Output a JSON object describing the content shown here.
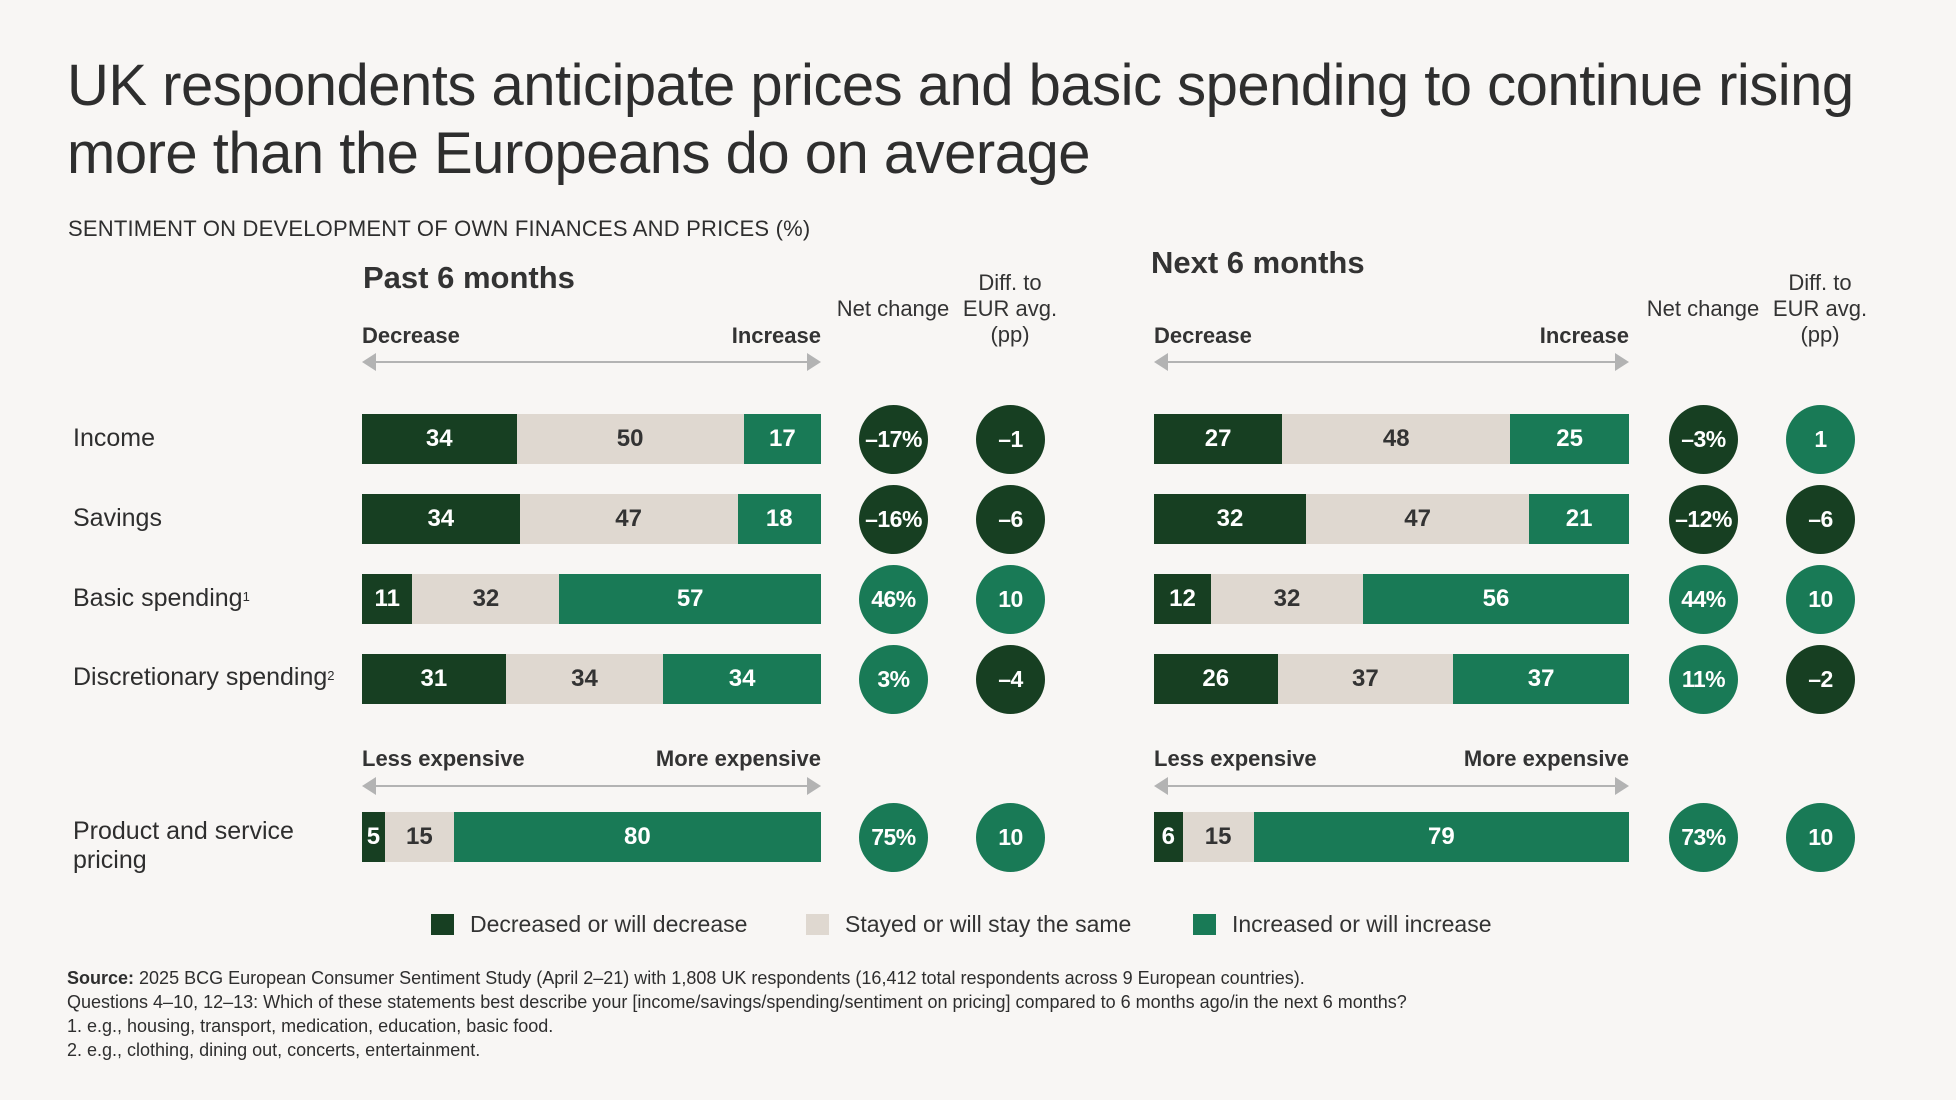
{
  "title": "UK respondents anticipate prices and basic spending to continue rising more than the Europeans do on average",
  "subtitle": "SENTIMENT ON DEVELOPMENT OF OWN FINANCES AND PRICES (%)",
  "colors": {
    "decrease": "#173f22",
    "same": "#dfd8d0",
    "increase": "#197a56",
    "background": "#f8f6f4",
    "arrow": "#b3b3b3"
  },
  "headers": {
    "net_change": "Net change",
    "diff_line1": "Diff. to",
    "diff_line2": "EUR avg.",
    "diff_line3": "(pp)",
    "decrease": "Decrease",
    "increase": "Increase",
    "less_expensive": "Less expensive",
    "more_expensive": "More expensive"
  },
  "chart_data": {
    "type": "bar",
    "subtype": "stacked-horizontal-100",
    "title": "SENTIMENT ON DEVELOPMENT OF OWN FINANCES AND PRICES (%)",
    "categories": [
      "Income",
      "Savings",
      "Basic spending",
      "Discretionary spending",
      "Product and service pricing"
    ],
    "category_footnotes": [
      "",
      "",
      "1",
      "2",
      ""
    ],
    "legend": [
      "Decreased or will decrease",
      "Stayed or will stay the same",
      "Increased or will increase"
    ],
    "legend_position": "bottom",
    "panels": [
      {
        "name": "Past 6 months",
        "series": [
          {
            "name": "Decreased or will decrease",
            "values": [
              34,
              34,
              11,
              31,
              5
            ]
          },
          {
            "name": "Stayed or will stay the same",
            "values": [
              50,
              47,
              32,
              34,
              15
            ]
          },
          {
            "name": "Increased or will increase",
            "values": [
              17,
              18,
              57,
              34,
              80
            ]
          }
        ],
        "net_change": [
          "–17%",
          "–16%",
          "46%",
          "3%",
          "75%"
        ],
        "net_change_values": [
          -17,
          -16,
          46,
          3,
          75
        ],
        "diff_to_eur_avg": [
          "–1",
          "–6",
          "10",
          "–4",
          "10"
        ],
        "diff_to_eur_avg_values": [
          -1,
          -6,
          10,
          -4,
          10
        ]
      },
      {
        "name": "Next 6 months",
        "series": [
          {
            "name": "Decreased or will decrease",
            "values": [
              27,
              32,
              12,
              26,
              6
            ]
          },
          {
            "name": "Stayed or will stay the same",
            "values": [
              48,
              47,
              32,
              37,
              15
            ]
          },
          {
            "name": "Increased or will increase",
            "values": [
              25,
              21,
              56,
              37,
              79
            ]
          }
        ],
        "net_change": [
          "–3%",
          "–12%",
          "44%",
          "11%",
          "73%"
        ],
        "net_change_values": [
          -3,
          -12,
          44,
          11,
          73
        ],
        "diff_to_eur_avg": [
          "1",
          "–6",
          "10",
          "–2",
          "10"
        ],
        "diff_to_eur_avg_values": [
          1,
          -6,
          10,
          -2,
          10
        ]
      }
    ]
  },
  "rows": [
    {
      "label": "Income",
      "sup": ""
    },
    {
      "label": "Savings",
      "sup": ""
    },
    {
      "label": "Basic spending",
      "sup": "1"
    },
    {
      "label": "Discretionary spending",
      "sup": "2"
    },
    {
      "label_line1": "Product and service",
      "label_line2": "pricing",
      "sup": ""
    }
  ],
  "legend": [
    {
      "label": "Decreased or will decrease"
    },
    {
      "label": "Stayed or will stay the same"
    },
    {
      "label": "Increased or will increase"
    }
  ],
  "source": {
    "label": "Source:",
    "text": " 2025 BCG European Consumer Sentiment Study (April 2–21) with 1,808 UK respondents (16,412 total respondents across 9 European countries).",
    "questions": "Questions 4–10, 12–13: Which of these statements best describe your [income/savings/spending/sentiment on pricing] compared to 6 months ago/in the next 6 months?",
    "note1": "1. e.g., housing, transport, medication, education, basic food.",
    "note2": "2. e.g., clothing, dining out, concerts, entertainment."
  }
}
